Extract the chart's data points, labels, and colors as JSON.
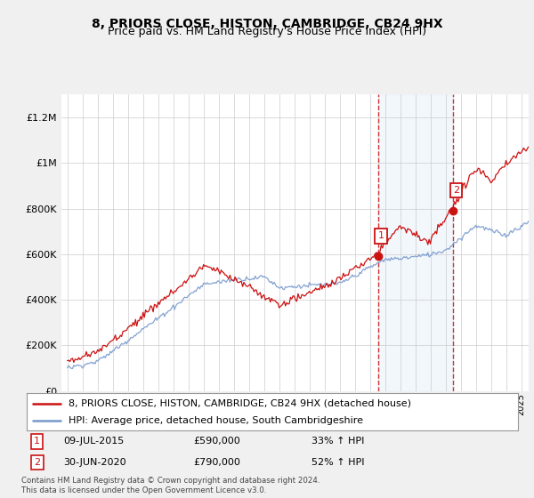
{
  "title": "8, PRIORS CLOSE, HISTON, CAMBRIDGE, CB24 9HX",
  "subtitle": "Price paid vs. HM Land Registry's House Price Index (HPI)",
  "ylim": [
    0,
    1300000
  ],
  "yticks": [
    0,
    200000,
    400000,
    600000,
    800000,
    1000000,
    1200000
  ],
  "ytick_labels": [
    "£0",
    "£200K",
    "£400K",
    "£600K",
    "£800K",
    "£1M",
    "£1.2M"
  ],
  "year_start": 1995,
  "year_end": 2025,
  "hpi_color": "#7799cc",
  "price_color": "#cc1111",
  "sale1_year": 2015.53,
  "sale1_price": 590000,
  "sale2_year": 2020.5,
  "sale2_price": 790000,
  "legend1_text": "8, PRIORS CLOSE, HISTON, CAMBRIDGE, CB24 9HX (detached house)",
  "legend2_text": "HPI: Average price, detached house, South Cambridgeshire",
  "footnote": "Contains HM Land Registry data © Crown copyright and database right 2024.\nThis data is licensed under the Open Government Licence v3.0.",
  "bg_color": "#f0f0f0",
  "plot_bg_color": "#ffffff",
  "shade_color": "#cce0f5",
  "grid_color": "#cccccc",
  "title_fontsize": 10,
  "subtitle_fontsize": 9,
  "tick_fontsize": 8,
  "legend_fontsize": 8
}
